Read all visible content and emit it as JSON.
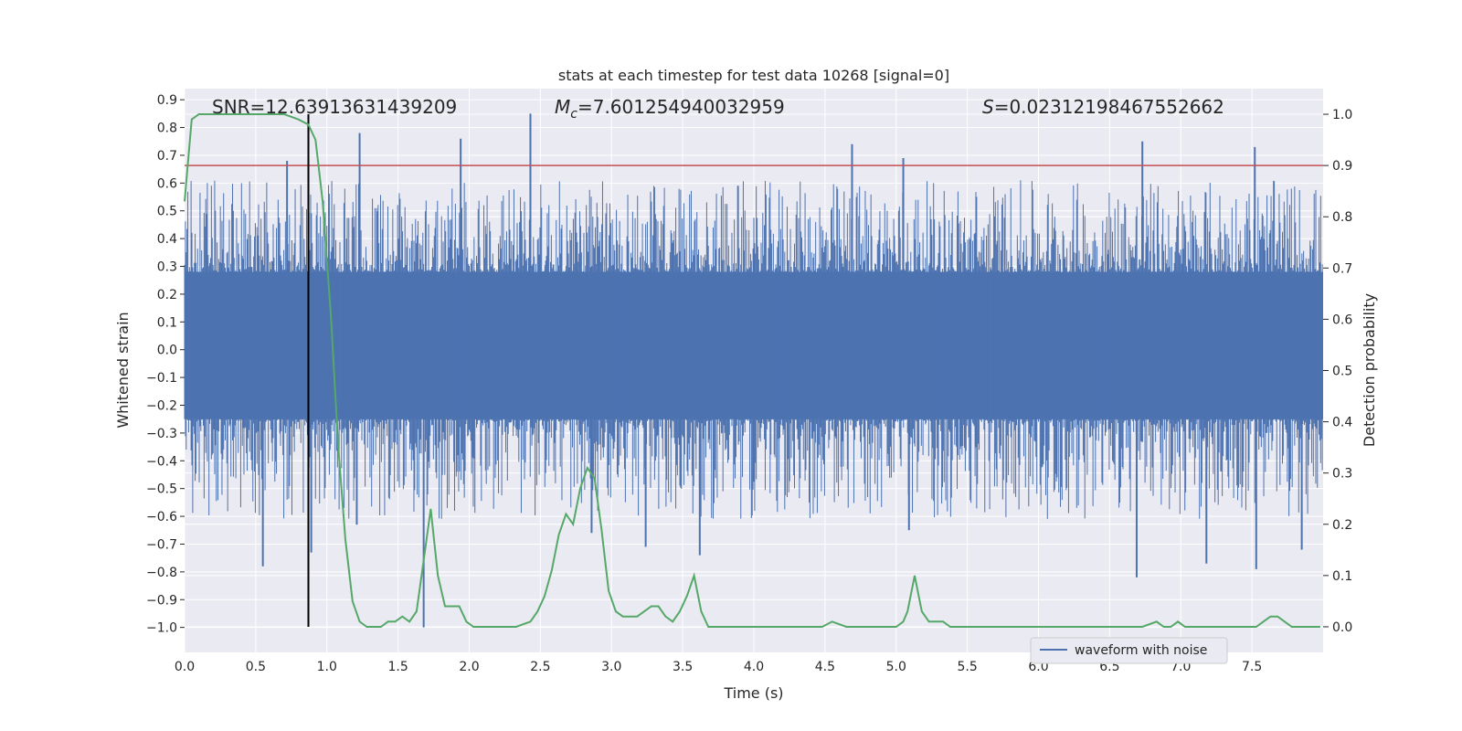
{
  "chart_data": {
    "type": "line",
    "title": "stats at each timestep for test data 10268 [signal=0]",
    "xlabel": "Time (s)",
    "ylabel": "Whitened strain",
    "y2label": "Detection probability",
    "xlim": [
      0.0,
      8.0
    ],
    "ylim": [
      -1.09,
      0.94
    ],
    "y2lim": [
      -0.05,
      1.05
    ],
    "xticks": [
      "0.0",
      "0.5",
      "1.0",
      "1.5",
      "2.0",
      "2.5",
      "3.0",
      "3.5",
      "4.0",
      "4.5",
      "5.0",
      "5.5",
      "6.0",
      "6.5",
      "7.0",
      "7.5"
    ],
    "yticks": [
      "0.9",
      "0.8",
      "0.7",
      "0.6",
      "0.5",
      "0.4",
      "0.3",
      "0.2",
      "0.1",
      "0.0",
      "-0.1",
      "-0.2",
      "-0.3",
      "-0.4",
      "-0.5",
      "-0.6",
      "-0.7",
      "-0.8",
      "-0.9",
      "-1.0"
    ],
    "y2ticks": [
      "1.0",
      "0.9",
      "0.8",
      "0.7",
      "0.6",
      "0.5",
      "0.4",
      "0.3",
      "0.2",
      "0.1",
      "0.0"
    ],
    "annotations": {
      "snr": "SNR=12.63913631439209",
      "mc_symbol": "M",
      "mc_sub": "c",
      "mc_value": "=7.601254940032959",
      "s_symbol": "S",
      "s_value": "=0.02312198467552662"
    },
    "threshold": 0.9,
    "marker_time": 0.87,
    "legend": {
      "label": "waveform with noise",
      "location": "lower-right"
    },
    "colors": {
      "waveform": "#4c72b0",
      "probability": "#55a868",
      "threshold": "#c44e52",
      "marker": "#000000",
      "background": "#eaeaf2",
      "grid": "#ffffff"
    },
    "series": [
      {
        "name": "waveform with noise",
        "axis": "left",
        "style": "noise",
        "band_low": -0.25,
        "band_high": 0.28,
        "spikes": [
          {
            "x": 0.55,
            "y": -0.78
          },
          {
            "x": 0.72,
            "y": 0.68
          },
          {
            "x": 0.89,
            "y": -0.73
          },
          {
            "x": 1.23,
            "y": 0.78
          },
          {
            "x": 1.21,
            "y": -0.63
          },
          {
            "x": 1.94,
            "y": 0.76
          },
          {
            "x": 2.43,
            "y": 0.85
          },
          {
            "x": 1.68,
            "y": -1.0
          },
          {
            "x": 2.86,
            "y": -0.66
          },
          {
            "x": 3.24,
            "y": -0.71
          },
          {
            "x": 3.62,
            "y": -0.74
          },
          {
            "x": 4.69,
            "y": 0.74
          },
          {
            "x": 5.05,
            "y": 0.69
          },
          {
            "x": 5.09,
            "y": -0.65
          },
          {
            "x": 6.73,
            "y": 0.75
          },
          {
            "x": 6.69,
            "y": -0.82
          },
          {
            "x": 7.18,
            "y": -0.77
          },
          {
            "x": 7.52,
            "y": 0.73
          },
          {
            "x": 7.53,
            "y": -0.79
          },
          {
            "x": 7.85,
            "y": -0.72
          }
        ]
      },
      {
        "name": "Detection probability",
        "axis": "right",
        "x": [
          0.0,
          0.05,
          0.1,
          0.2,
          0.3,
          0.4,
          0.5,
          0.6,
          0.65,
          0.7,
          0.8,
          0.87,
          0.92,
          0.97,
          1.03,
          1.08,
          1.13,
          1.18,
          1.23,
          1.28,
          1.38,
          1.43,
          1.48,
          1.53,
          1.58,
          1.63,
          1.68,
          1.73,
          1.78,
          1.83,
          1.88,
          1.93,
          1.98,
          2.03,
          2.13,
          2.23,
          2.33,
          2.43,
          2.48,
          2.53,
          2.58,
          2.63,
          2.68,
          2.73,
          2.78,
          2.83,
          2.88,
          2.93,
          2.98,
          3.03,
          3.08,
          3.13,
          3.18,
          3.23,
          3.28,
          3.33,
          3.38,
          3.43,
          3.48,
          3.53,
          3.58,
          3.63,
          3.68,
          3.73,
          3.78,
          3.88,
          3.98,
          4.08,
          4.18,
          4.28,
          4.38,
          4.48,
          4.55,
          4.65,
          4.75,
          4.85,
          4.95,
          5.0,
          5.05,
          5.08,
          5.13,
          5.18,
          5.23,
          5.28,
          5.33,
          5.38,
          5.43,
          5.53,
          5.63,
          5.73,
          5.83,
          5.93,
          6.03,
          6.13,
          6.23,
          6.33,
          6.43,
          6.53,
          6.63,
          6.73,
          6.83,
          6.88,
          6.93,
          6.98,
          7.03,
          7.08,
          7.13,
          7.23,
          7.33,
          7.43,
          7.53,
          7.58,
          7.63,
          7.68,
          7.73,
          7.78,
          7.83,
          7.88,
          7.93,
          7.98
        ],
        "y": [
          0.83,
          0.99,
          1.0,
          1.0,
          1.0,
          1.0,
          1.0,
          1.0,
          1.0,
          1.0,
          0.99,
          0.98,
          0.95,
          0.83,
          0.6,
          0.35,
          0.17,
          0.05,
          0.01,
          0.0,
          0.0,
          0.01,
          0.01,
          0.02,
          0.01,
          0.03,
          0.13,
          0.23,
          0.1,
          0.04,
          0.04,
          0.04,
          0.01,
          0.0,
          0.0,
          0.0,
          0.0,
          0.01,
          0.03,
          0.06,
          0.11,
          0.18,
          0.22,
          0.2,
          0.27,
          0.31,
          0.29,
          0.19,
          0.07,
          0.03,
          0.02,
          0.02,
          0.02,
          0.03,
          0.04,
          0.04,
          0.02,
          0.01,
          0.03,
          0.06,
          0.1,
          0.03,
          0.0,
          0.0,
          0.0,
          0.0,
          0.0,
          0.0,
          0.0,
          0.0,
          0.0,
          0.0,
          0.01,
          0.0,
          0.0,
          0.0,
          0.0,
          0.0,
          0.01,
          0.03,
          0.1,
          0.03,
          0.01,
          0.01,
          0.01,
          0.0,
          0.0,
          0.0,
          0.0,
          0.0,
          0.0,
          0.0,
          0.0,
          0.0,
          0.0,
          0.0,
          0.0,
          0.0,
          0.0,
          0.0,
          0.01,
          0.0,
          0.0,
          0.01,
          0.0,
          0.0,
          0.0,
          0.0,
          0.0,
          0.0,
          0.0,
          0.01,
          0.02,
          0.02,
          0.01,
          0.0,
          0.0,
          0.0,
          0.0,
          0.0
        ]
      }
    ]
  }
}
